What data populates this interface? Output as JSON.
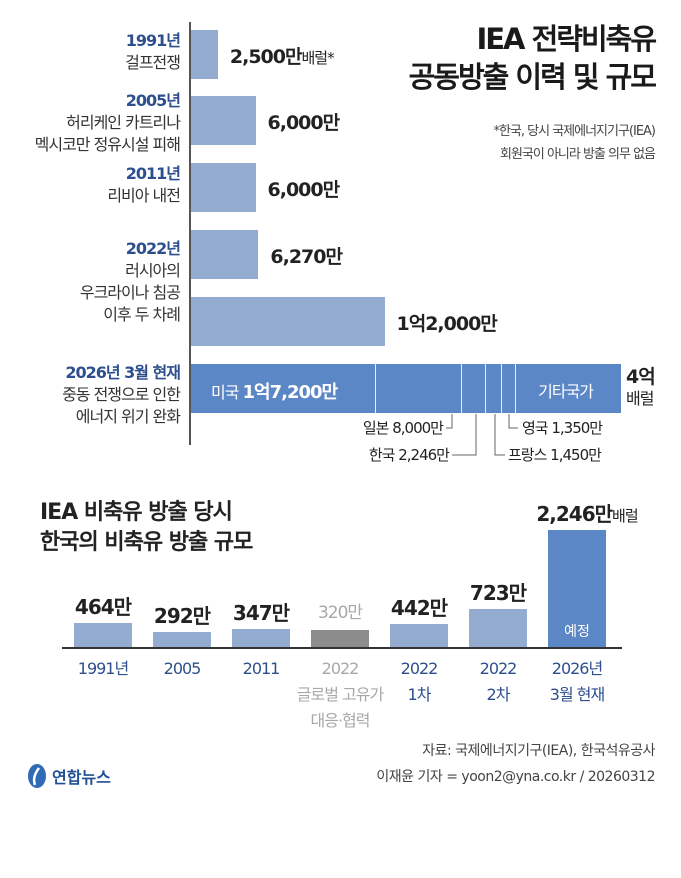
{
  "title": {
    "line1": "IEA 전략비축유",
    "line2": "공동방출 이력 및 규모"
  },
  "note": {
    "line1": "*한국, 당시 국제에너지기구(IEA)",
    "line2": "회원국이 아니라 방출 의무 없음"
  },
  "chart_data": [
    {
      "type": "bar",
      "orientation": "horizontal",
      "unit": "만 배럴",
      "categories": [
        {
          "year": "1991년",
          "desc": [
            "걸프전쟁"
          ],
          "value": 2500,
          "label": "2,500만",
          "suffix": "배럴*"
        },
        {
          "year": "2005년",
          "desc": [
            "허리케인 카트리나",
            "멕시코만 정유시설 피해"
          ],
          "value": 6000,
          "label": "6,000만",
          "suffix": ""
        },
        {
          "year": "2011년",
          "desc": [
            "리비아 내전"
          ],
          "value": 6000,
          "label": "6,000만",
          "suffix": ""
        },
        {
          "year": "2022년",
          "desc": [
            "러시아의"
          ],
          "value": 6270,
          "label": "6,270만",
          "suffix": ""
        },
        {
          "year": "",
          "desc": [
            "우크라이나 침공",
            "이후 두 차례"
          ],
          "value": 12000,
          "label": "1억2,000만",
          "suffix": ""
        },
        {
          "year": "2026년 3월 현재",
          "desc": [
            "중동 전쟁으로 인한",
            "에너지 위기 완화"
          ],
          "value": 40000,
          "label": "4억",
          "suffix": "배럴"
        }
      ],
      "stacked_2026": [
        {
          "name": "미국",
          "value": 17200,
          "label": "미국 1억7,200만"
        },
        {
          "name": "일본",
          "value": 8000,
          "label": "일본 8,000만"
        },
        {
          "name": "한국",
          "value": 2246,
          "label": "한국 2,246만"
        },
        {
          "name": "프랑스",
          "value": 1450,
          "label": "프랑스 1,450만"
        },
        {
          "name": "영국",
          "value": 1350,
          "label": "영국 1,350만"
        },
        {
          "name": "기타국가",
          "value": 9754,
          "label": "기타국가"
        }
      ],
      "colors": {
        "past": "#94acd0",
        "current": "#5b87c6"
      }
    },
    {
      "type": "bar",
      "title": {
        "line1": "IEA 비축유 방출 당시",
        "line2": "한국의 비축유 방출 규모"
      },
      "unit": "만 배럴",
      "categories": [
        {
          "lines": [
            "1991년"
          ],
          "value": 464,
          "label": "464만",
          "style": "past"
        },
        {
          "lines": [
            "2005"
          ],
          "value": 292,
          "label": "292만",
          "style": "past"
        },
        {
          "lines": [
            "2011"
          ],
          "value": 347,
          "label": "347만",
          "style": "past"
        },
        {
          "lines": [
            "2022",
            "글로벌 고유가",
            "대응·협력"
          ],
          "value": 320,
          "label": "320만",
          "style": "gray"
        },
        {
          "lines": [
            "2022",
            "1차"
          ],
          "value": 442,
          "label": "442만",
          "style": "past"
        },
        {
          "lines": [
            "2022",
            "2차"
          ],
          "value": 723,
          "label": "723만",
          "style": "past"
        },
        {
          "lines": [
            "2026년",
            "3월 현재"
          ],
          "value": 2246,
          "label": "2,246만",
          "suffix": "배럴",
          "inner": "예정",
          "style": "current"
        }
      ],
      "colors": {
        "past": "#94acd0",
        "current": "#5b87c6",
        "gray": "#8c8c8c"
      }
    }
  ],
  "source": {
    "line1": "자료: 국제에너지기구(IEA), 한국석유공사",
    "line2": "이재윤 기자 = yoon2@yna.co.kr / 20260312"
  },
  "logo": {
    "text": "연합뉴스"
  }
}
